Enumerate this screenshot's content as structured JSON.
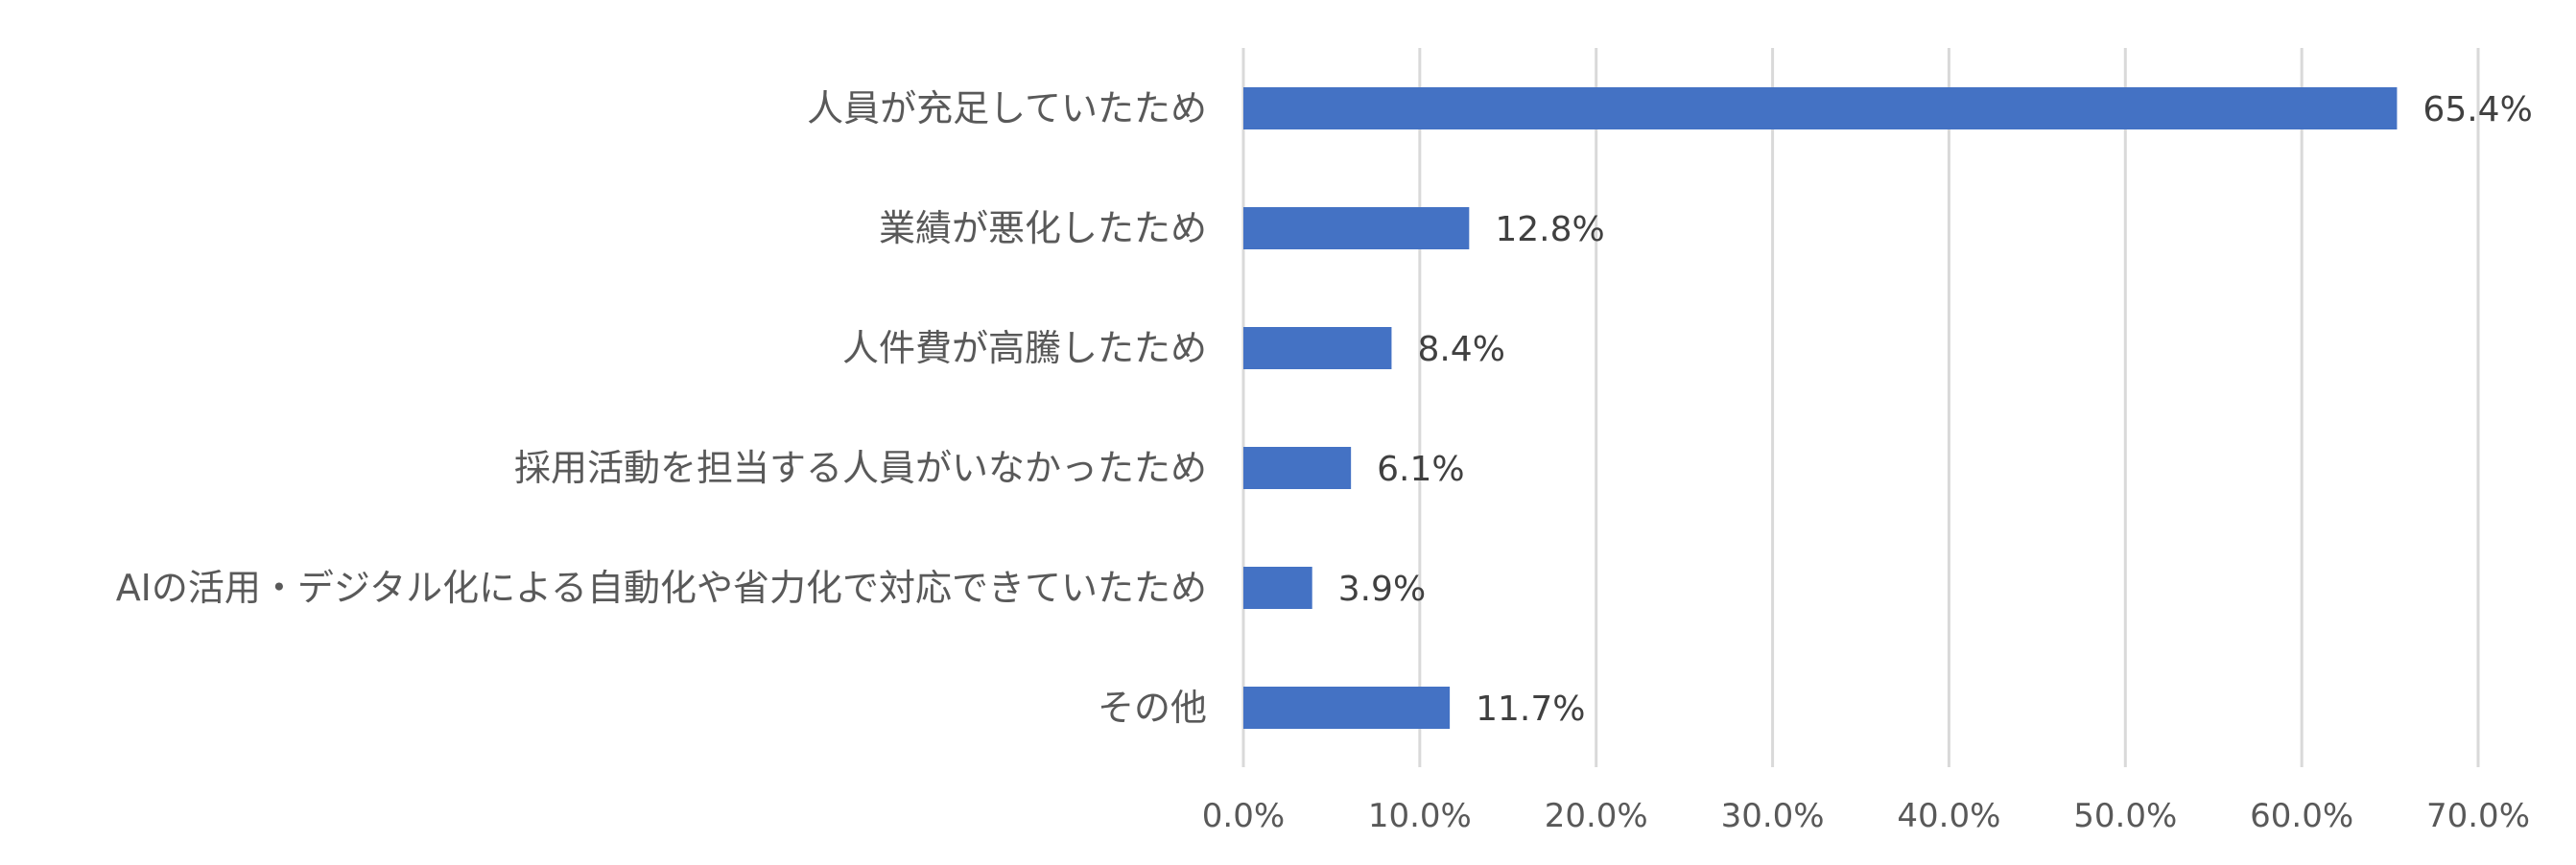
{
  "chart_data": {
    "type": "bar",
    "orientation": "horizontal",
    "title": "",
    "xlabel": "",
    "ylabel": "",
    "categories": [
      "人員が充足していたため",
      "業績が悪化したため",
      "人件費が高騰したため",
      "採用活動を担当する人員がいなかったため",
      "AIの活用・デジタル化による自動化や省力化で対応できていたため",
      "その他"
    ],
    "values": [
      65.4,
      12.8,
      8.4,
      6.1,
      3.9,
      11.7
    ],
    "value_labels": [
      "65.4%",
      "12.8%",
      "8.4%",
      "6.1%",
      "3.9%",
      "11.7%"
    ],
    "xlim": [
      0,
      70
    ],
    "ticks": [
      0,
      10,
      20,
      30,
      40,
      50,
      60,
      70
    ],
    "tick_labels": [
      "0.0%",
      "10.0%",
      "20.0%",
      "30.0%",
      "40.0%",
      "50.0%",
      "60.0%",
      "70.0%"
    ],
    "grid": true,
    "legend": "none",
    "colors": {
      "bar": "#4472C4",
      "grid": "#D9D9D9",
      "label": "#595959",
      "value_label": "#404040"
    }
  }
}
